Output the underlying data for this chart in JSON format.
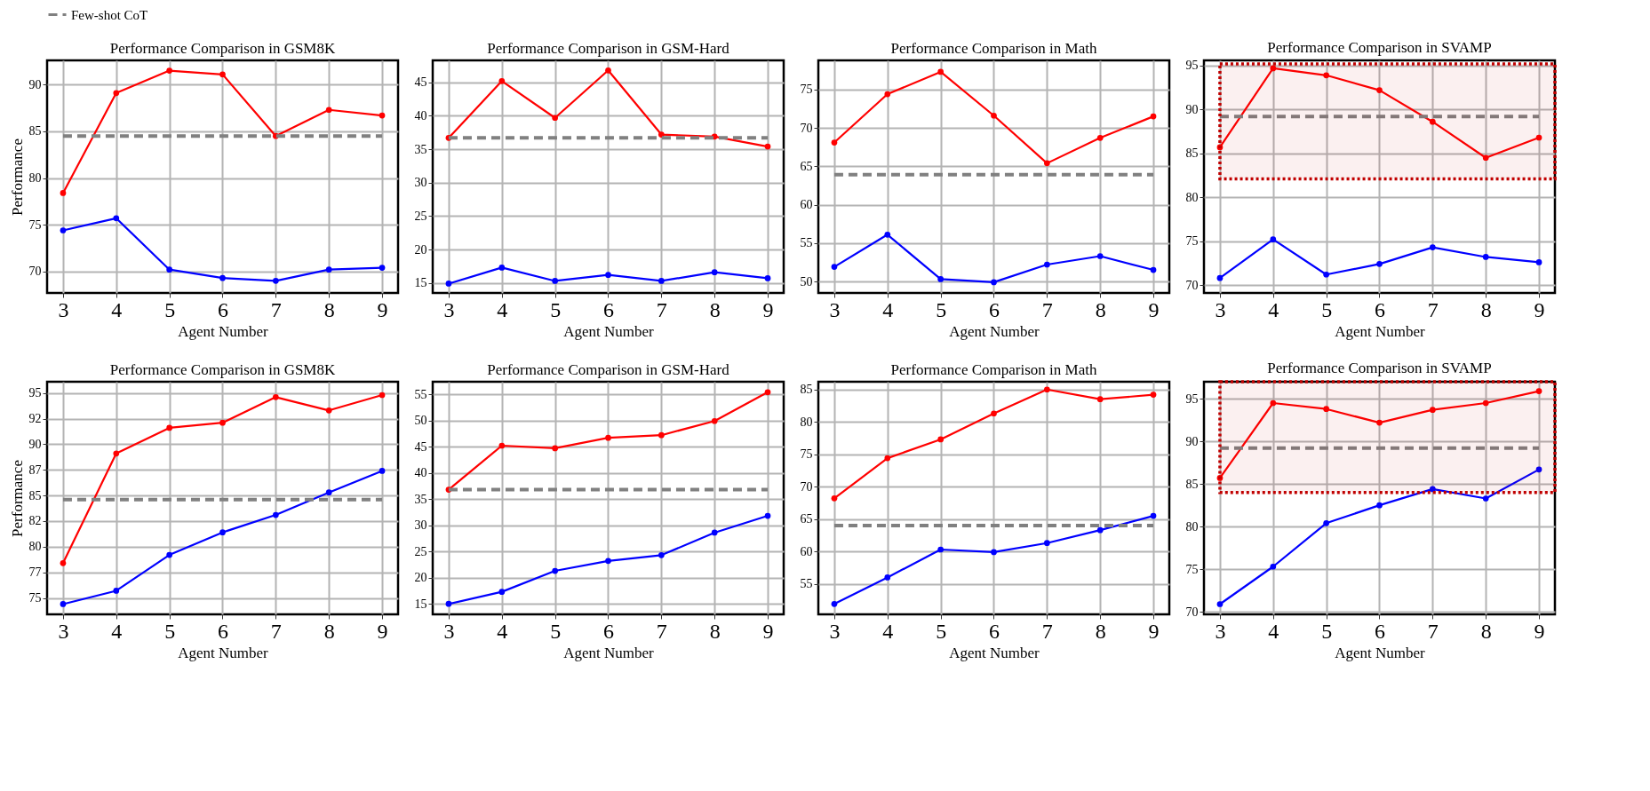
{
  "chart_data": [
    {
      "type": "line",
      "title": "Performance Comparison in GSM8K",
      "xlabel": "Agent Number",
      "ylabel": "Performance",
      "x": [
        3,
        4,
        5,
        6,
        7,
        8,
        9
      ],
      "xlim": [
        2.7,
        9.3
      ],
      "xticks": [
        3,
        4,
        5,
        6,
        7,
        8,
        9
      ],
      "ylim": [
        67.7,
        92.6
      ],
      "yticks": [
        70,
        75,
        80,
        85,
        90
      ],
      "grid": true,
      "marker": "circle",
      "legend": "top",
      "series": [
        {
          "color": "#ff0000",
          "values": [
            78.4,
            89.1,
            91.5,
            91.1,
            84.5,
            87.3,
            86.7
          ]
        },
        {
          "color": "#0000ff",
          "values": [
            74.4,
            75.7,
            70.2,
            69.3,
            69.0,
            70.2,
            70.4
          ]
        }
      ],
      "ref_lines": [
        {
          "axis": "y",
          "value": 84.5,
          "label": "Few-shot CoT",
          "color": "#808080",
          "line_style": "dashed"
        }
      ]
    },
    {
      "type": "line",
      "title": "Performance Comparison in GSM-Hard",
      "xlabel": "Agent Number",
      "x": [
        3,
        4,
        5,
        6,
        7,
        8,
        9
      ],
      "xlim": [
        2.7,
        9.3
      ],
      "xticks": [
        3,
        4,
        5,
        6,
        7,
        8,
        9
      ],
      "ylim": [
        13.5,
        48.3
      ],
      "yticks": [
        15,
        20,
        25,
        30,
        35,
        40,
        45
      ],
      "grid": true,
      "marker": "circle",
      "series": [
        {
          "color": "#ff0000",
          "values": [
            36.7,
            45.2,
            39.7,
            46.8,
            37.2,
            36.9,
            35.4
          ]
        },
        {
          "color": "#0000ff",
          "values": [
            14.9,
            17.3,
            15.3,
            16.2,
            15.3,
            16.6,
            15.7
          ]
        }
      ],
      "ref_lines": [
        {
          "axis": "y",
          "value": 36.7,
          "color": "#808080",
          "line_style": "dashed"
        }
      ]
    },
    {
      "type": "line",
      "title": "Performance Comparison in Math",
      "xlabel": "Agent Number",
      "x": [
        3,
        4,
        5,
        6,
        7,
        8,
        9
      ],
      "xlim": [
        2.7,
        9.3
      ],
      "xticks": [
        3,
        4,
        5,
        6,
        7,
        8,
        9
      ],
      "ylim": [
        48.5,
        78.8
      ],
      "yticks": [
        50,
        55,
        60,
        65,
        70,
        75
      ],
      "grid": true,
      "marker": "circle",
      "series": [
        {
          "color": "#ff0000",
          "values": [
            68.1,
            74.4,
            77.3,
            71.6,
            65.4,
            68.7,
            71.5
          ]
        },
        {
          "color": "#0000ff",
          "values": [
            51.9,
            56.1,
            50.3,
            49.9,
            52.2,
            53.3,
            51.5
          ]
        }
      ],
      "ref_lines": [
        {
          "axis": "y",
          "value": 63.9,
          "color": "#808080",
          "line_style": "dashed"
        }
      ]
    },
    {
      "type": "line",
      "title": "Performance Comparison in SVAMP",
      "xlabel": "Agent Number",
      "x": [
        3,
        4,
        5,
        6,
        7,
        8,
        9
      ],
      "xlim": [
        2.7,
        9.3
      ],
      "xticks": [
        3,
        4,
        5,
        6,
        7,
        8,
        9
      ],
      "ylim": [
        69.1,
        95.6
      ],
      "yticks": [
        70,
        75,
        80,
        85,
        90,
        95
      ],
      "grid": true,
      "marker": "circle",
      "series": [
        {
          "color": "#ff0000",
          "values": [
            85.7,
            94.7,
            93.9,
            92.2,
            88.6,
            84.5,
            86.8
          ]
        },
        {
          "color": "#0000ff",
          "values": [
            70.8,
            75.2,
            71.2,
            72.4,
            74.3,
            73.2,
            72.6
          ]
        }
      ],
      "ref_lines": [
        {
          "axis": "y",
          "value": 89.2,
          "color": "#808080",
          "line_style": "dashed"
        }
      ],
      "bands": [
        {
          "axis": "y",
          "from": 82.1,
          "to": 95.2,
          "color": "#c00000"
        }
      ]
    },
    {
      "type": "line",
      "title": "Performance Comparison in GSM8K",
      "xlabel": "Agent Number",
      "ylabel": "Performance",
      "x": [
        3,
        4,
        5,
        6,
        7,
        8,
        9
      ],
      "xlim": [
        2.7,
        9.3
      ],
      "xticks": [
        3,
        4,
        5,
        6,
        7,
        8,
        9
      ],
      "ylim": [
        73.4,
        96.1
      ],
      "yticks": [
        75,
        {
          "value": 77.5,
          "label": "77"
        },
        80,
        {
          "value": 82.5,
          "label": "82"
        },
        85,
        {
          "value": 87.5,
          "label": "87"
        },
        90,
        {
          "value": 92.5,
          "label": "92"
        },
        95
      ],
      "grid": true,
      "marker": "circle",
      "series": [
        {
          "color": "#ff0000",
          "values": [
            78.4,
            89.1,
            91.6,
            92.1,
            94.6,
            93.3,
            94.8
          ]
        },
        {
          "color": "#0000ff",
          "values": [
            74.4,
            75.7,
            79.2,
            81.4,
            83.1,
            85.3,
            87.4
          ]
        }
      ],
      "ref_lines": [
        {
          "axis": "y",
          "value": 84.6,
          "color": "#808080",
          "line_style": "dashed"
        }
      ]
    },
    {
      "type": "line",
      "title": "Performance Comparison in GSM-Hard",
      "xlabel": "Agent Number",
      "x": [
        3,
        4,
        5,
        6,
        7,
        8,
        9
      ],
      "xlim": [
        2.7,
        9.3
      ],
      "xticks": [
        3,
        4,
        5,
        6,
        7,
        8,
        9
      ],
      "ylim": [
        13.0,
        57.4
      ],
      "yticks": [
        15,
        20,
        25,
        30,
        35,
        40,
        45,
        50,
        55
      ],
      "grid": true,
      "marker": "circle",
      "series": [
        {
          "color": "#ff0000",
          "values": [
            36.8,
            45.2,
            44.7,
            46.7,
            47.2,
            49.9,
            55.4
          ]
        },
        {
          "color": "#0000ff",
          "values": [
            15.0,
            17.3,
            21.3,
            23.2,
            24.3,
            28.6,
            31.8
          ]
        }
      ],
      "ref_lines": [
        {
          "axis": "y",
          "value": 36.8,
          "color": "#808080",
          "line_style": "dashed"
        }
      ]
    },
    {
      "type": "line",
      "title": "Performance Comparison in Math",
      "xlabel": "Agent Number",
      "x": [
        3,
        4,
        5,
        6,
        7,
        8,
        9
      ],
      "xlim": [
        2.7,
        9.3
      ],
      "xticks": [
        3,
        4,
        5,
        6,
        7,
        8,
        9
      ],
      "ylim": [
        50.3,
        86.2
      ],
      "yticks": [
        55,
        60,
        65,
        70,
        75,
        80,
        85
      ],
      "grid": true,
      "marker": "circle",
      "series": [
        {
          "color": "#ff0000",
          "values": [
            68.2,
            74.4,
            77.3,
            81.3,
            85.0,
            83.5,
            84.2
          ]
        },
        {
          "color": "#0000ff",
          "values": [
            51.9,
            56.0,
            60.3,
            59.9,
            61.3,
            63.3,
            65.5
          ]
        }
      ],
      "ref_lines": [
        {
          "axis": "y",
          "value": 64.0,
          "color": "#808080",
          "line_style": "dashed"
        }
      ]
    },
    {
      "type": "line",
      "title": "Performance Comparison in SVAMP",
      "xlabel": "Agent Number",
      "x": [
        3,
        4,
        5,
        6,
        7,
        8,
        9
      ],
      "xlim": [
        2.7,
        9.3
      ],
      "xticks": [
        3,
        4,
        5,
        6,
        7,
        8,
        9
      ],
      "ylim": [
        69.7,
        97.0
      ],
      "yticks": [
        70,
        75,
        80,
        85,
        90,
        95
      ],
      "grid": true,
      "marker": "circle",
      "series": [
        {
          "color": "#ff0000",
          "values": [
            85.7,
            94.5,
            93.8,
            92.2,
            93.7,
            94.5,
            95.9
          ]
        },
        {
          "color": "#0000ff",
          "values": [
            70.9,
            75.3,
            80.4,
            82.5,
            84.4,
            83.3,
            86.7
          ]
        }
      ],
      "ref_lines": [
        {
          "axis": "y",
          "value": 89.2,
          "color": "#808080",
          "line_style": "dashed"
        }
      ],
      "bands": [
        {
          "axis": "y",
          "from": 84.0,
          "to": 97.0,
          "color": "#c00000"
        }
      ]
    }
  ]
}
